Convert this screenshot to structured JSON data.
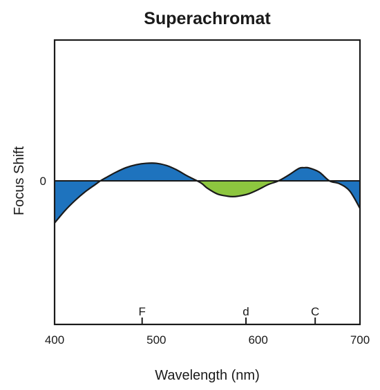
{
  "chart_data": {
    "type": "area",
    "title": "Superachromat",
    "xlabel": "Wavelength (nm)",
    "ylabel": "Focus Shift",
    "xlim": [
      400,
      700
    ],
    "ylim": [
      -1,
      1
    ],
    "x_ticks": [
      400,
      500,
      600,
      700
    ],
    "x_tick_labels": [
      "400",
      "500",
      "600",
      "700"
    ],
    "y_ticks": [
      0
    ],
    "y_tick_labels": [
      "0"
    ],
    "spectral_lines": [
      {
        "label": "F",
        "x": 486
      },
      {
        "label": "d",
        "x": 588
      },
      {
        "label": "C",
        "x": 656
      }
    ],
    "series": [
      {
        "x": [
          400,
          410,
          420,
          430,
          440,
          445,
          450,
          460,
          470,
          480,
          490,
          500,
          510,
          520,
          530,
          540,
          545,
          550,
          560,
          570,
          575,
          580,
          590,
          600,
          610,
          620,
          630,
          640,
          645,
          650,
          660,
          670,
          680,
          690,
          700
        ],
        "y": [
          -0.288,
          -0.205,
          -0.135,
          -0.075,
          -0.025,
          0.0,
          0.02,
          0.058,
          0.09,
          0.11,
          0.12,
          0.12,
          0.105,
          0.075,
          0.035,
          0.0,
          -0.02,
          -0.05,
          -0.09,
          -0.105,
          -0.108,
          -0.105,
          -0.09,
          -0.06,
          -0.025,
          0.0,
          0.04,
          0.085,
          0.09,
          0.088,
          0.06,
          0.0,
          -0.02,
          -0.07,
          -0.188
        ]
      }
    ],
    "positive_color": "#1e73be",
    "negative_color": "#8dc63f",
    "grid": false
  }
}
